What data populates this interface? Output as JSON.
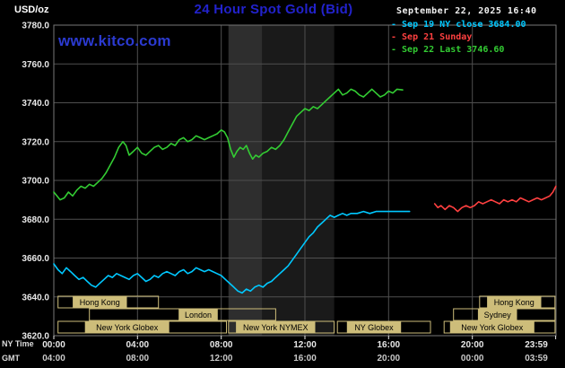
{
  "header": {
    "unit_label": "USD/oz",
    "title": "24 Hour Spot Gold (Bid)",
    "datetime": "September 22, 2025 16:40",
    "watermark": "www.kitco.com",
    "legend": [
      {
        "label": "- Sep 19 NY close 3684.00",
        "color": "#00c8ff"
      },
      {
        "label": "- Sep 21 Sunday",
        "color": "#ff4040"
      },
      {
        "label": "- Sep 22 Last 3746.60",
        "color": "#33cc33"
      }
    ]
  },
  "footer": {
    "ny_time_label": "NY Time",
    "gmt_label": "GMT"
  },
  "chart_data": {
    "type": "line",
    "title": "24 Hour Spot Gold (Bid)",
    "unit": "USD/oz",
    "ylim": [
      3620,
      3780
    ],
    "y_tick_step": 20,
    "y_tick_labels": [
      "3780.0",
      "3760.0",
      "3740.0",
      "3720.0",
      "3700.0",
      "3680.0",
      "3660.0",
      "3640.0",
      "3620.0"
    ],
    "x_axis": {
      "hours_range": [
        0,
        24
      ],
      "tick_hours": [
        0,
        4,
        8,
        12,
        16,
        20,
        23.983
      ],
      "ny_labels": [
        "00:00",
        "04:00",
        "08:00",
        "12:00",
        "16:00",
        "20:00",
        "23:59"
      ],
      "gmt_labels": [
        "04:00",
        "08:00",
        "12:00",
        "16:00",
        "20:00",
        "00:00",
        "03:59"
      ]
    },
    "grid": true,
    "legend_position": "top-right",
    "colors": {
      "grid": "#4f4f4f",
      "border": "#777777",
      "session": "#cdbd7a",
      "axis_text": "#e8e8e8",
      "gmt_text": "#c9c9c9"
    },
    "shaded_bands": [
      {
        "start_h": 8.35,
        "end_h": 13.4,
        "color": "#1a1a1a"
      },
      {
        "start_h": 8.35,
        "end_h": 9.95,
        "color": "#2e2e2e"
      }
    ],
    "series": [
      {
        "name": "Sep 19 NY close",
        "color": "#00c8ff",
        "close": 3684.0,
        "points": [
          [
            0.0,
            3657
          ],
          [
            0.2,
            3654
          ],
          [
            0.4,
            3652
          ],
          [
            0.6,
            3655
          ],
          [
            0.8,
            3653
          ],
          [
            1.0,
            3651
          ],
          [
            1.2,
            3649
          ],
          [
            1.4,
            3650
          ],
          [
            1.6,
            3648
          ],
          [
            1.8,
            3646
          ],
          [
            2.0,
            3645
          ],
          [
            2.2,
            3647
          ],
          [
            2.4,
            3649
          ],
          [
            2.6,
            3651
          ],
          [
            2.8,
            3650
          ],
          [
            3.0,
            3652
          ],
          [
            3.2,
            3651
          ],
          [
            3.4,
            3650
          ],
          [
            3.6,
            3649
          ],
          [
            3.8,
            3651
          ],
          [
            4.0,
            3652
          ],
          [
            4.2,
            3650
          ],
          [
            4.4,
            3648
          ],
          [
            4.6,
            3649
          ],
          [
            4.8,
            3651
          ],
          [
            5.0,
            3650
          ],
          [
            5.2,
            3652
          ],
          [
            5.4,
            3653
          ],
          [
            5.6,
            3652
          ],
          [
            5.8,
            3651
          ],
          [
            6.0,
            3653
          ],
          [
            6.2,
            3654
          ],
          [
            6.4,
            3652
          ],
          [
            6.6,
            3653
          ],
          [
            6.8,
            3655
          ],
          [
            7.0,
            3654
          ],
          [
            7.2,
            3653
          ],
          [
            7.4,
            3654
          ],
          [
            7.6,
            3653
          ],
          [
            7.8,
            3652
          ],
          [
            8.0,
            3651
          ],
          [
            8.2,
            3649
          ],
          [
            8.4,
            3647
          ],
          [
            8.6,
            3645
          ],
          [
            8.8,
            3643
          ],
          [
            9.0,
            3642
          ],
          [
            9.2,
            3644
          ],
          [
            9.4,
            3643
          ],
          [
            9.6,
            3645
          ],
          [
            9.8,
            3646
          ],
          [
            10.0,
            3645
          ],
          [
            10.2,
            3647
          ],
          [
            10.4,
            3648
          ],
          [
            10.6,
            3650
          ],
          [
            10.8,
            3652
          ],
          [
            11.0,
            3654
          ],
          [
            11.2,
            3656
          ],
          [
            11.4,
            3659
          ],
          [
            11.6,
            3662
          ],
          [
            11.8,
            3665
          ],
          [
            12.0,
            3668
          ],
          [
            12.2,
            3671
          ],
          [
            12.4,
            3673
          ],
          [
            12.6,
            3676
          ],
          [
            12.8,
            3678
          ],
          [
            13.0,
            3680
          ],
          [
            13.2,
            3682
          ],
          [
            13.4,
            3681
          ],
          [
            13.6,
            3682
          ],
          [
            13.8,
            3683
          ],
          [
            14.0,
            3682
          ],
          [
            14.2,
            3683
          ],
          [
            14.5,
            3683
          ],
          [
            14.8,
            3684
          ],
          [
            15.1,
            3683
          ],
          [
            15.4,
            3684
          ],
          [
            15.7,
            3684
          ],
          [
            16.0,
            3684
          ],
          [
            16.3,
            3684
          ],
          [
            16.6,
            3684
          ],
          [
            17.0,
            3684
          ]
        ]
      },
      {
        "name": "Sep 21 Sunday",
        "color": "#ff4040",
        "points": [
          [
            18.2,
            3688
          ],
          [
            18.35,
            3686
          ],
          [
            18.5,
            3687
          ],
          [
            18.7,
            3685
          ],
          [
            18.9,
            3687
          ],
          [
            19.1,
            3686
          ],
          [
            19.3,
            3684
          ],
          [
            19.5,
            3686
          ],
          [
            19.7,
            3687
          ],
          [
            19.9,
            3686
          ],
          [
            20.1,
            3687
          ],
          [
            20.3,
            3689
          ],
          [
            20.5,
            3688
          ],
          [
            20.7,
            3689
          ],
          [
            20.9,
            3690
          ],
          [
            21.1,
            3689
          ],
          [
            21.3,
            3688
          ],
          [
            21.5,
            3690
          ],
          [
            21.7,
            3689
          ],
          [
            21.9,
            3690
          ],
          [
            22.1,
            3689
          ],
          [
            22.3,
            3691
          ],
          [
            22.5,
            3690
          ],
          [
            22.7,
            3689
          ],
          [
            22.9,
            3690
          ],
          [
            23.1,
            3691
          ],
          [
            23.3,
            3690
          ],
          [
            23.5,
            3691
          ],
          [
            23.7,
            3692
          ],
          [
            23.85,
            3694
          ],
          [
            23.99,
            3697
          ]
        ]
      },
      {
        "name": "Sep 22 Last",
        "color": "#33cc33",
        "last": 3746.6,
        "points": [
          [
            0.0,
            3694
          ],
          [
            0.15,
            3692
          ],
          [
            0.3,
            3690
          ],
          [
            0.5,
            3691
          ],
          [
            0.7,
            3694
          ],
          [
            0.9,
            3692
          ],
          [
            1.1,
            3695
          ],
          [
            1.3,
            3697
          ],
          [
            1.5,
            3696
          ],
          [
            1.7,
            3698
          ],
          [
            1.9,
            3697
          ],
          [
            2.1,
            3699
          ],
          [
            2.3,
            3701
          ],
          [
            2.5,
            3704
          ],
          [
            2.7,
            3708
          ],
          [
            2.9,
            3712
          ],
          [
            3.1,
            3717
          ],
          [
            3.3,
            3720
          ],
          [
            3.45,
            3718
          ],
          [
            3.6,
            3713
          ],
          [
            3.8,
            3715
          ],
          [
            4.0,
            3717
          ],
          [
            4.2,
            3714
          ],
          [
            4.4,
            3713
          ],
          [
            4.6,
            3715
          ],
          [
            4.8,
            3717
          ],
          [
            5.0,
            3718
          ],
          [
            5.2,
            3716
          ],
          [
            5.4,
            3717
          ],
          [
            5.6,
            3719
          ],
          [
            5.8,
            3718
          ],
          [
            6.0,
            3721
          ],
          [
            6.2,
            3722
          ],
          [
            6.4,
            3720
          ],
          [
            6.6,
            3721
          ],
          [
            6.8,
            3723
          ],
          [
            7.0,
            3722
          ],
          [
            7.2,
            3721
          ],
          [
            7.4,
            3722
          ],
          [
            7.6,
            3723
          ],
          [
            7.8,
            3724
          ],
          [
            8.0,
            3726
          ],
          [
            8.15,
            3725
          ],
          [
            8.3,
            3722
          ],
          [
            8.45,
            3716
          ],
          [
            8.6,
            3712
          ],
          [
            8.75,
            3715
          ],
          [
            8.9,
            3717
          ],
          [
            9.05,
            3716
          ],
          [
            9.2,
            3718
          ],
          [
            9.35,
            3714
          ],
          [
            9.5,
            3711
          ],
          [
            9.65,
            3713
          ],
          [
            9.8,
            3712
          ],
          [
            10.0,
            3714
          ],
          [
            10.2,
            3715
          ],
          [
            10.4,
            3717
          ],
          [
            10.6,
            3716
          ],
          [
            10.8,
            3718
          ],
          [
            11.0,
            3721
          ],
          [
            11.2,
            3725
          ],
          [
            11.4,
            3729
          ],
          [
            11.6,
            3733
          ],
          [
            11.8,
            3735
          ],
          [
            12.0,
            3737
          ],
          [
            12.2,
            3736
          ],
          [
            12.4,
            3738
          ],
          [
            12.6,
            3737
          ],
          [
            12.8,
            3739
          ],
          [
            13.0,
            3741
          ],
          [
            13.2,
            3743
          ],
          [
            13.4,
            3745
          ],
          [
            13.6,
            3747
          ],
          [
            13.8,
            3744
          ],
          [
            14.0,
            3745
          ],
          [
            14.2,
            3747
          ],
          [
            14.4,
            3746
          ],
          [
            14.6,
            3744
          ],
          [
            14.8,
            3743
          ],
          [
            15.0,
            3745
          ],
          [
            15.2,
            3747
          ],
          [
            15.4,
            3745
          ],
          [
            15.6,
            3743
          ],
          [
            15.8,
            3744
          ],
          [
            16.0,
            3746
          ],
          [
            16.2,
            3745
          ],
          [
            16.4,
            3747
          ],
          [
            16.67,
            3746.6
          ]
        ]
      }
    ],
    "sessions": {
      "rows": [
        [
          {
            "label": "Hong Kong",
            "start_h": 0.2,
            "end_h": 5.0,
            "label_center_h": 2.2
          },
          {
            "label": "Hong Kong",
            "start_h": 20.35,
            "end_h": 23.95,
            "label_center_h": 22.0
          }
        ],
        [
          {
            "label": "London",
            "start_h": 1.7,
            "end_h": 10.6,
            "label_center_h": 6.9
          },
          {
            "label": "Sydney",
            "start_h": 19.1,
            "end_h": 23.95,
            "label_center_h": 21.2
          }
        ],
        [
          {
            "label": "New York Globex",
            "start_h": 0.2,
            "end_h": 8.25,
            "label_center_h": 3.5
          },
          {
            "label": "New York NYMEX",
            "start_h": 8.35,
            "end_h": 13.4,
            "label_center_h": 10.6
          },
          {
            "label": "NY Globex",
            "start_h": 13.55,
            "end_h": 18.0,
            "label_center_h": 15.3
          },
          {
            "label": "New York Globex",
            "start_h": 18.65,
            "end_h": 23.95,
            "label_center_h": 20.95
          }
        ]
      ]
    }
  }
}
